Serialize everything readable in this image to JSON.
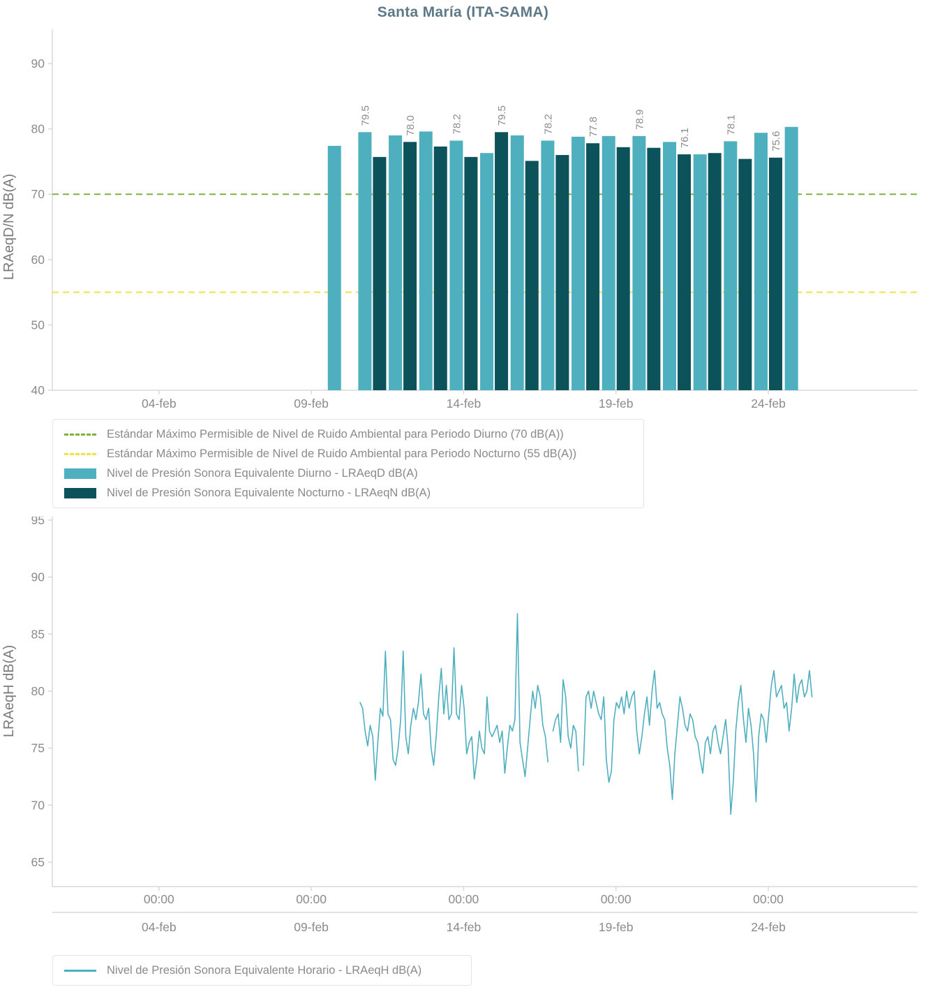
{
  "title": "Santa María (ITA-SAMA)",
  "colors": {
    "diurno": "#4EAFBF",
    "nocturno": "#0C525A",
    "hourly_line": "#4EAFBF",
    "limit_diurno": "#7FB13C",
    "limit_nocturno": "#F0E442",
    "axis": "#D9D9D9",
    "tick_text": "#8B8B8B",
    "axis_title": "#7A7A7A",
    "title_text": "#5D7987"
  },
  "legend1": {
    "items": [
      {
        "label": "Estándar Máximo Permisible de Nivel de Ruido Ambiental para Periodo Diurno (70 dB(A))",
        "color": "#7FB13C",
        "style": "dashed"
      },
      {
        "label": "Estándar Máximo Permisible de Nivel de Ruido Ambiental para Periodo Nocturno (55 dB(A))",
        "color": "#F0E442",
        "style": "dashed"
      },
      {
        "label": "Nivel de Presión Sonora Equivalente Diurno - LRAeqD dB(A)",
        "color": "#4EAFBF",
        "style": "rect"
      },
      {
        "label": "Nivel de Presión Sonora Equivalente Nocturno - LRAeqN dB(A)",
        "color": "#0C525A",
        "style": "rect"
      }
    ]
  },
  "legend2": {
    "items": [
      {
        "label": "Nivel de Presión Sonora Equivalente Horario - LRAeqH dB(A)",
        "color": "#4EAFBF",
        "style": "line"
      }
    ]
  },
  "chart_data": [
    {
      "type": "bar",
      "title": "Santa María (ITA-SAMA)",
      "ylabel": "LRAeqD/N dB(A)",
      "ylim": [
        40,
        95
      ],
      "yticks": [
        40,
        50,
        60,
        70,
        80,
        90
      ],
      "xticks": [
        {
          "label": "04-feb",
          "day": 4
        },
        {
          "label": "09-feb",
          "day": 9
        },
        {
          "label": "14-feb",
          "day": 14
        },
        {
          "label": "19-feb",
          "day": 19
        },
        {
          "label": "24-feb",
          "day": 24
        }
      ],
      "reference_lines": [
        {
          "name": "limite-diurno-70",
          "label": "Estándar Máximo Permisible Diurno",
          "value": 70,
          "color": "#7FB13C"
        },
        {
          "name": "limite-nocturno-55",
          "label": "Estándar Máximo Permisible Nocturno",
          "value": 55,
          "color": "#F0E442"
        }
      ],
      "series_names": {
        "D": "Nivel de Presión Sonora Equivalente Diurno - LRAeqD dB(A)",
        "N": "Nivel de Presión Sonora Equivalente Nocturno - LRAeqN dB(A)"
      },
      "bars": [
        {
          "date": "10-feb",
          "day": 10,
          "period": "D",
          "value": 77.4,
          "show_label": false
        },
        {
          "date": "11-feb",
          "day": 11,
          "period": "D",
          "value": 79.5,
          "show_label": true
        },
        {
          "date": "11-feb",
          "day": 11,
          "period": "N",
          "value": 75.7,
          "show_label": false
        },
        {
          "date": "12-feb",
          "day": 12,
          "period": "D",
          "value": 79.0,
          "show_label": false
        },
        {
          "date": "12-feb",
          "day": 12,
          "period": "N",
          "value": 78.0,
          "show_label": true
        },
        {
          "date": "13-feb",
          "day": 13,
          "period": "D",
          "value": 79.6,
          "show_label": false
        },
        {
          "date": "13-feb",
          "day": 13,
          "period": "N",
          "value": 77.3,
          "show_label": false
        },
        {
          "date": "14-feb",
          "day": 14,
          "period": "D",
          "value": 78.2,
          "show_label": true
        },
        {
          "date": "14-feb",
          "day": 14,
          "period": "N",
          "value": 75.7,
          "show_label": false
        },
        {
          "date": "15-feb",
          "day": 15,
          "period": "D",
          "value": 76.3,
          "show_label": false
        },
        {
          "date": "15-feb",
          "day": 15,
          "period": "N",
          "value": 79.5,
          "show_label": true
        },
        {
          "date": "16-feb",
          "day": 16,
          "period": "D",
          "value": 79.0,
          "show_label": false
        },
        {
          "date": "16-feb",
          "day": 16,
          "period": "N",
          "value": 75.1,
          "show_label": false
        },
        {
          "date": "17-feb",
          "day": 17,
          "period": "D",
          "value": 78.2,
          "show_label": true
        },
        {
          "date": "17-feb",
          "day": 17,
          "period": "N",
          "value": 76.0,
          "show_label": false
        },
        {
          "date": "18-feb",
          "day": 18,
          "period": "D",
          "value": 78.8,
          "show_label": false
        },
        {
          "date": "18-feb",
          "day": 18,
          "period": "N",
          "value": 77.8,
          "show_label": true
        },
        {
          "date": "19-feb",
          "day": 19,
          "period": "D",
          "value": 78.9,
          "show_label": false
        },
        {
          "date": "19-feb",
          "day": 19,
          "period": "N",
          "value": 77.2,
          "show_label": false
        },
        {
          "date": "20-feb",
          "day": 20,
          "period": "D",
          "value": 78.9,
          "show_label": true
        },
        {
          "date": "20-feb",
          "day": 20,
          "period": "N",
          "value": 77.1,
          "show_label": false
        },
        {
          "date": "21-feb",
          "day": 21,
          "period": "D",
          "value": 78.0,
          "show_label": false
        },
        {
          "date": "21-feb",
          "day": 21,
          "period": "N",
          "value": 76.1,
          "show_label": true
        },
        {
          "date": "22-feb",
          "day": 22,
          "period": "D",
          "value": 76.1,
          "show_label": false
        },
        {
          "date": "22-feb",
          "day": 22,
          "period": "N",
          "value": 76.3,
          "show_label": false
        },
        {
          "date": "23-feb",
          "day": 23,
          "period": "D",
          "value": 78.1,
          "show_label": true
        },
        {
          "date": "23-feb",
          "day": 23,
          "period": "N",
          "value": 75.4,
          "show_label": false
        },
        {
          "date": "24-feb",
          "day": 24,
          "period": "D",
          "value": 79.4,
          "show_label": false
        },
        {
          "date": "24-feb",
          "day": 24,
          "period": "N",
          "value": 75.6,
          "show_label": true
        },
        {
          "date": "25-feb",
          "day": 25,
          "period": "D",
          "value": 80.3,
          "show_label": false
        }
      ]
    },
    {
      "type": "line",
      "ylabel": "LRAeqH dB(A)",
      "ylim": [
        62,
        96
      ],
      "yticks": [
        65,
        70,
        75,
        80,
        85,
        90,
        95
      ],
      "xticks_time": [
        {
          "label": "00:00",
          "day": 4
        },
        {
          "label": "00:00",
          "day": 9
        },
        {
          "label": "00:00",
          "day": 14
        },
        {
          "label": "00:00",
          "day": 19
        },
        {
          "label": "00:00",
          "day": 24
        }
      ],
      "xticks_date": [
        {
          "label": "04-feb",
          "day": 4
        },
        {
          "label": "09-feb",
          "day": 9
        },
        {
          "label": "14-feb",
          "day": 14
        },
        {
          "label": "19-feb",
          "day": 19
        },
        {
          "label": "24-feb",
          "day": 24
        }
      ],
      "series": [
        {
          "name": "Nivel de Presión Sonora Equivalente Horario - LRAeqH dB(A)",
          "color": "#4EAFBF",
          "start_day": 10.6,
          "step_hours": 2,
          "values": [
            79.0,
            78.5,
            76.5,
            75.2,
            77.0,
            76.0,
            72.2,
            75.5,
            78.5,
            77.8,
            83.5,
            78.0,
            77.5,
            74.0,
            73.5,
            75.0,
            77.5,
            83.5,
            76.0,
            74.5,
            77.0,
            78.5,
            77.5,
            79.0,
            81.5,
            78.0,
            77.5,
            78.5,
            75.0,
            73.5,
            76.0,
            79.5,
            82.0,
            78.0,
            80.5,
            77.5,
            78.0,
            83.8,
            78.0,
            77.5,
            80.5,
            78.5,
            74.5,
            75.5,
            76.0,
            72.3,
            74.0,
            76.5,
            75.0,
            74.5,
            79.5,
            76.5,
            76.0,
            76.5,
            77.0,
            75.5,
            76.5,
            72.8,
            75.0,
            77.0,
            76.5,
            77.5,
            86.8,
            75.5,
            74.0,
            72.5,
            75.0,
            77.5,
            80.0,
            78.5,
            80.5,
            79.5,
            77.0,
            76.0,
            73.8,
            null,
            76.5,
            77.5,
            78.0,
            75.5,
            81.0,
            79.5,
            76.0,
            75.0,
            77.0,
            76.5,
            73.0,
            null,
            73.5,
            79.5,
            80.0,
            78.5,
            80.0,
            79.0,
            78.0,
            77.5,
            79.5,
            74.0,
            72.0,
            73.0,
            77.5,
            79.0,
            78.5,
            79.5,
            78.0,
            80.0,
            78.5,
            79.5,
            80.0,
            76.5,
            74.5,
            76.0,
            78.0,
            79.5,
            77.0,
            80.0,
            81.8,
            78.5,
            79.0,
            78.0,
            77.5,
            75.0,
            73.5,
            70.5,
            74.5,
            77.0,
            79.5,
            78.5,
            77.0,
            76.5,
            78.0,
            77.5,
            76.0,
            75.5,
            74.0,
            72.8,
            75.5,
            76.0,
            74.5,
            76.5,
            77.0,
            75.5,
            74.5,
            76.0,
            77.5,
            75.0,
            69.2,
            72.0,
            76.5,
            79.0,
            80.5,
            77.5,
            75.5,
            78.5,
            77.0,
            74.5,
            70.3,
            76.0,
            78.0,
            77.5,
            75.5,
            78.0,
            80.5,
            81.8,
            79.5,
            80.0,
            80.5,
            78.5,
            79.0,
            76.5,
            78.5,
            81.5,
            79.0,
            80.5,
            81.0,
            79.5,
            80.0,
            81.8,
            79.5
          ]
        }
      ]
    }
  ]
}
